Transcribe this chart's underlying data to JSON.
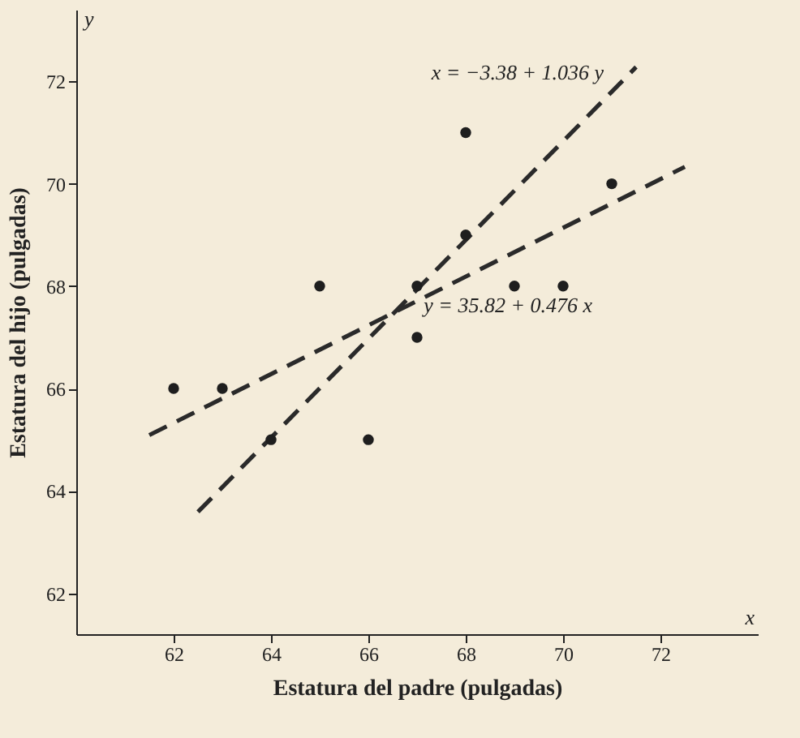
{
  "chart_data": {
    "type": "scatter",
    "xlabel": "Estatura del padre (pulgadas)",
    "ylabel": "Estatura del hijo (pulgadas)",
    "xlim": [
      60,
      74
    ],
    "ylim": [
      61.2,
      73.4
    ],
    "xticks": [
      62,
      64,
      66,
      68,
      70,
      72
    ],
    "yticks": [
      62,
      64,
      66,
      68,
      70,
      72
    ],
    "grid": false,
    "series": [
      {
        "type": "scatter",
        "color": "#1e1e1e",
        "marker": "circle",
        "x": [
          65,
          63,
          67,
          64,
          68,
          62,
          70,
          66,
          68,
          67,
          69,
          71
        ],
        "values": [
          68,
          66,
          68,
          65,
          69,
          66,
          68,
          65,
          71,
          67,
          68,
          70
        ]
      },
      {
        "type": "line",
        "color": "#2a2a2a",
        "line_style": "dashed",
        "x": [
          61.5,
          72.5
        ],
        "values": [
          65.09,
          70.33
        ]
      },
      {
        "type": "line",
        "color": "#2a2a2a",
        "line_style": "dashed",
        "x": [
          62.5,
          71.5
        ],
        "values": [
          63.59,
          72.28
        ]
      }
    ],
    "annotations": [
      "y",
      "x",
      {
        "text": "x = −3.38 + 1.036 y",
        "x": 71.3,
        "y": 72.1
      },
      {
        "text": "y = 35.82 + 0.476 x",
        "x": 68.6,
        "y": 68.5
      }
    ]
  }
}
